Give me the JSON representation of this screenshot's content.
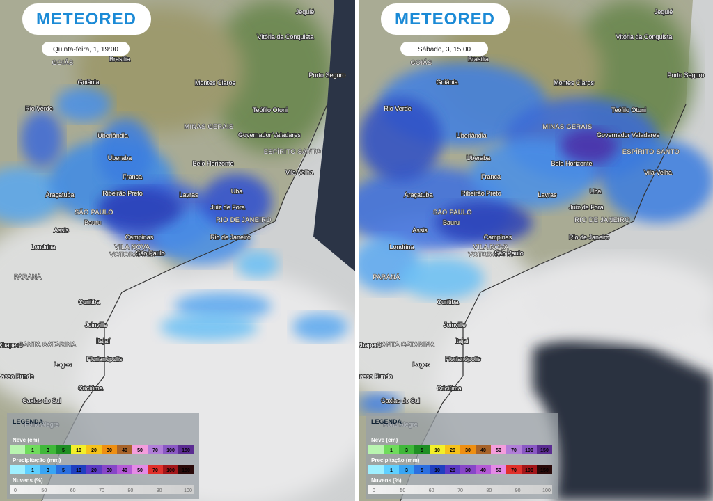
{
  "brand": "METEORED",
  "panels": [
    {
      "timestamp": "Quinta-feira, 1, 19:00"
    },
    {
      "timestamp": "Sábado, 3, 15:00"
    }
  ],
  "places": [
    "Jequié",
    "Vitória da Conquista",
    "Porto Seguro",
    "GOIÁS",
    "Brasília",
    "Montes Claros",
    "Goiânia",
    "Teófilo Otoni",
    "Rio Verde",
    "MINAS GERAIS",
    "Governador Valadares",
    "Uberlândia",
    "ESPÍRITO SANTO",
    "Uberaba",
    "Belo Horizonte",
    "Vila Velha",
    "Franca",
    "Uba",
    "Ribeirão Preto",
    "Lavras",
    "Araçatuba",
    "SÃO PAULO",
    "Juiz de Fora",
    "Bauru",
    "RIO DE JANEIRO",
    "Assis",
    "Campinas",
    "Rio de Janeiro",
    "Londrina",
    "VILA NOVA",
    "VOTORANTIM",
    "São Paulo",
    "PARANÁ",
    "Curitiba",
    "Joinville",
    "Itajaí",
    "Chapecó",
    "SANTA CATARINA",
    "Florianópolis",
    "Lages",
    "Passo Fundo",
    "Criciúma",
    "Caxias do Sul",
    "Porto Alegre"
  ],
  "legend": {
    "title": "LEGENDA",
    "scales": [
      {
        "label": "Neve (cm)",
        "ticks": [
          1,
          3,
          5,
          10,
          20,
          30,
          40,
          50,
          70,
          100,
          150
        ],
        "colors": [
          "#b9f5b0",
          "#6fdc5c",
          "#3fb83a",
          "#1f8f24",
          "#f3ef2a",
          "#f5c21b",
          "#ee8f12",
          "#a8642a",
          "#f49ddc",
          "#b17ed8",
          "#8a58c4",
          "#5b2c92"
        ]
      },
      {
        "label": "Precipitação (mm)",
        "ticks": [
          1,
          3,
          5,
          10,
          20,
          30,
          40,
          50,
          70,
          100,
          150
        ],
        "colors": [
          "#9ff0ff",
          "#5fd0ff",
          "#39a5f3",
          "#2b6fe0",
          "#1f3fc0",
          "#5b3bc4",
          "#8746c8",
          "#b45ad6",
          "#e48ae6",
          "#e0302a",
          "#a3161a",
          "#2a0a0a"
        ]
      },
      {
        "label": "Nuvens (%)",
        "ticks": [
          0,
          50,
          60,
          70,
          80,
          90,
          100
        ]
      }
    ]
  }
}
